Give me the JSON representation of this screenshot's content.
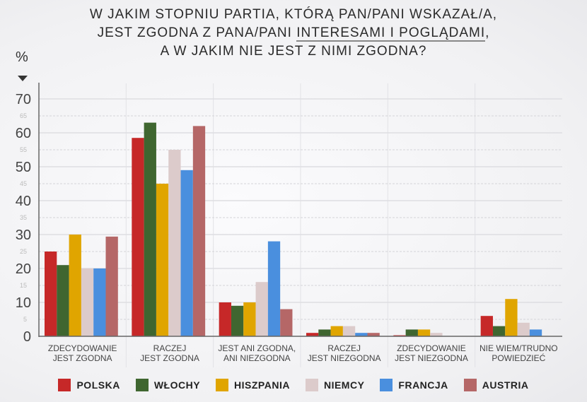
{
  "title": {
    "line1": "W JAKIM STOPNIU PARTIA, KTÓRĄ PAN/PANI WSKAZAŁ/A,",
    "line2a": "JEST ZGODNA Z PANA/PANI ",
    "line2u": "INTERESAMI I POGLĄDAMI",
    "line2b": ",",
    "line3": "A W JAKIM NIE JEST Z NIMI ZGODNA?"
  },
  "chart_data": {
    "type": "bar",
    "title": "W JAKIM STOPNIU PARTIA, KTÓRĄ PAN/PANI WSKAZAŁ/A, JEST ZGODNA Z PANA/PANI INTERESAMI I POGLĄDAMI, A W JAKIM NIE JEST Z NIMI ZGODNA?",
    "ylabel": "%",
    "ylim": [
      0,
      70
    ],
    "major_ticks": [
      0,
      10,
      20,
      30,
      40,
      50,
      60,
      70
    ],
    "minor_ticks": [
      5,
      15,
      25,
      35,
      45,
      55,
      65
    ],
    "categories": [
      [
        "ZDECYDOWANIE",
        "JEST ZGODNA"
      ],
      [
        "RACZEJ",
        "JEST ZGODNA"
      ],
      [
        "JEST ANI ZGODNA,",
        "ANI NIEZGODNA"
      ],
      [
        "RACZEJ",
        "JEST NIEZGODNA"
      ],
      [
        "ZDECYDOWANIE",
        "JEST NIEZGODNA"
      ],
      [
        "NIE WIEM/TRUDNO",
        "POWIEDZIEĆ"
      ]
    ],
    "series": [
      {
        "name": "POLSKA",
        "color": "#c62828",
        "values": [
          25,
          58.5,
          10,
          1,
          0.3,
          6
        ]
      },
      {
        "name": "WŁOCHY",
        "color": "#3f6630",
        "values": [
          21,
          63,
          9,
          2,
          2,
          3
        ]
      },
      {
        "name": "HISZPANIA",
        "color": "#e0a500",
        "values": [
          30,
          45,
          10,
          3,
          2,
          11
        ]
      },
      {
        "name": "NIEMCY",
        "color": "#dccbcb",
        "values": [
          20,
          55,
          16,
          3,
          1,
          4
        ]
      },
      {
        "name": "FRANCJA",
        "color": "#4a8fde",
        "values": [
          20,
          49,
          28,
          1,
          0,
          2
        ]
      },
      {
        "name": "AUSTRIA",
        "color": "#b56767",
        "values": [
          29.4,
          62,
          8,
          1,
          0,
          0
        ]
      }
    ],
    "legend": "bottom",
    "grid": true
  }
}
